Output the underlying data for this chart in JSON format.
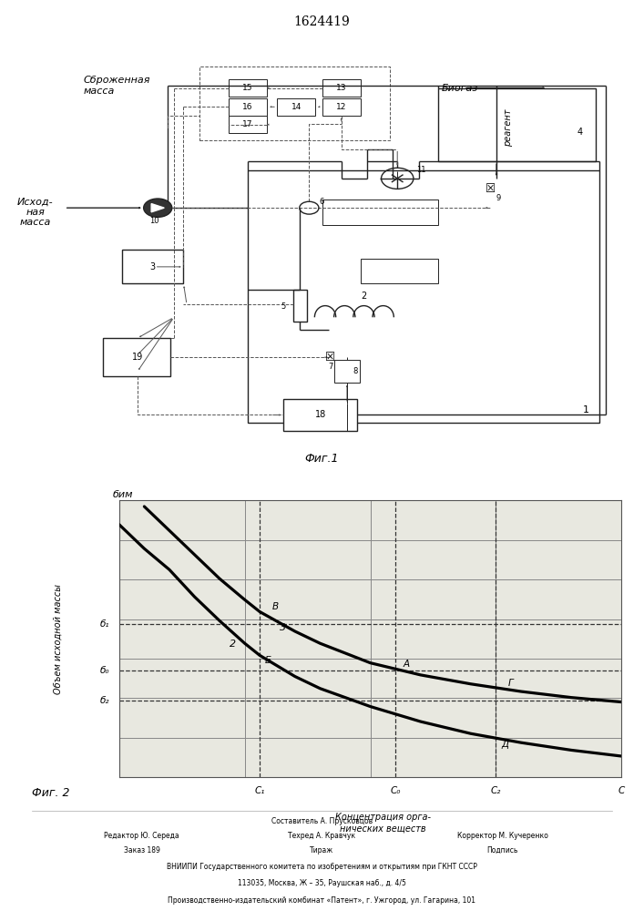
{
  "title": "1624419",
  "fig1_caption": "Фиг.1",
  "fig2_caption": "Фиг. 2",
  "label_sbrozhennaya": "Сброженная\nмасса",
  "label_iskhodnaya": "Исход-\nная\nмасса",
  "label_biogas": "Биогаз",
  "label_reagent": "реагент",
  "ylabel_fig2": "Объем исходной массы",
  "xlabel_fig2": "Концентрация орга-\nнических веществ",
  "bg_color": "#ffffff",
  "line_color": "#222222",
  "b1": 0.69,
  "b0": 0.535,
  "b2": 0.435,
  "C1": 0.28,
  "C0": 0.55,
  "C2": 0.75,
  "ymin": 0.18,
  "ymax": 1.1,
  "curve2_x": [
    0.0,
    0.05,
    0.1,
    0.15,
    0.2,
    0.25,
    0.28,
    0.35,
    0.4,
    0.5,
    0.6,
    0.7,
    0.8,
    0.9,
    1.0
  ],
  "curve2_y": [
    1.02,
    0.94,
    0.87,
    0.78,
    0.7,
    0.625,
    0.585,
    0.515,
    0.475,
    0.415,
    0.365,
    0.325,
    0.295,
    0.27,
    0.25
  ],
  "curve3_x": [
    0.05,
    0.1,
    0.15,
    0.2,
    0.25,
    0.28,
    0.35,
    0.4,
    0.5,
    0.6,
    0.7,
    0.8,
    0.9,
    1.0
  ],
  "curve3_y": [
    1.08,
    1.0,
    0.92,
    0.84,
    0.77,
    0.73,
    0.665,
    0.625,
    0.56,
    0.52,
    0.49,
    0.465,
    0.445,
    0.43
  ],
  "footer_line1": "Составитель А. Прусковцов",
  "footer_line2a": "Редактор Ю. Середа",
  "footer_line2b": "Техред А. Кравчук",
  "footer_line2c": "Корректор М. Кучеренко",
  "footer_line3a": "Заказ 189",
  "footer_line3b": "Тираж",
  "footer_line3c": "Подпись",
  "footer_line4": "ВНИИПИ Государственного комитета по изобретениям и открытиям при ГКНТ СССР",
  "footer_line5": "113035, Москва, Ж – 35, Раушская наб., д. 4/5",
  "footer_line6": "Производственно-издательский комбинат «Патент», г. Ужгород, ул. Гагарина, 101"
}
